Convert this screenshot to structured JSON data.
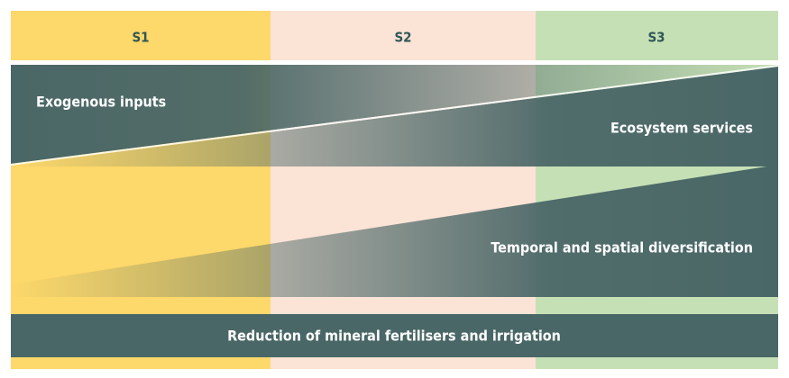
{
  "header": {
    "columns": [
      "S1",
      "S2",
      "S3"
    ]
  },
  "bands": {
    "exogenous": "Exogenous inputs",
    "ecosystem": "Ecosystem services",
    "diversification": "Temporal and spatial diversification",
    "reduction": "Reduction of mineral fertilisers and irrigation"
  }
}
